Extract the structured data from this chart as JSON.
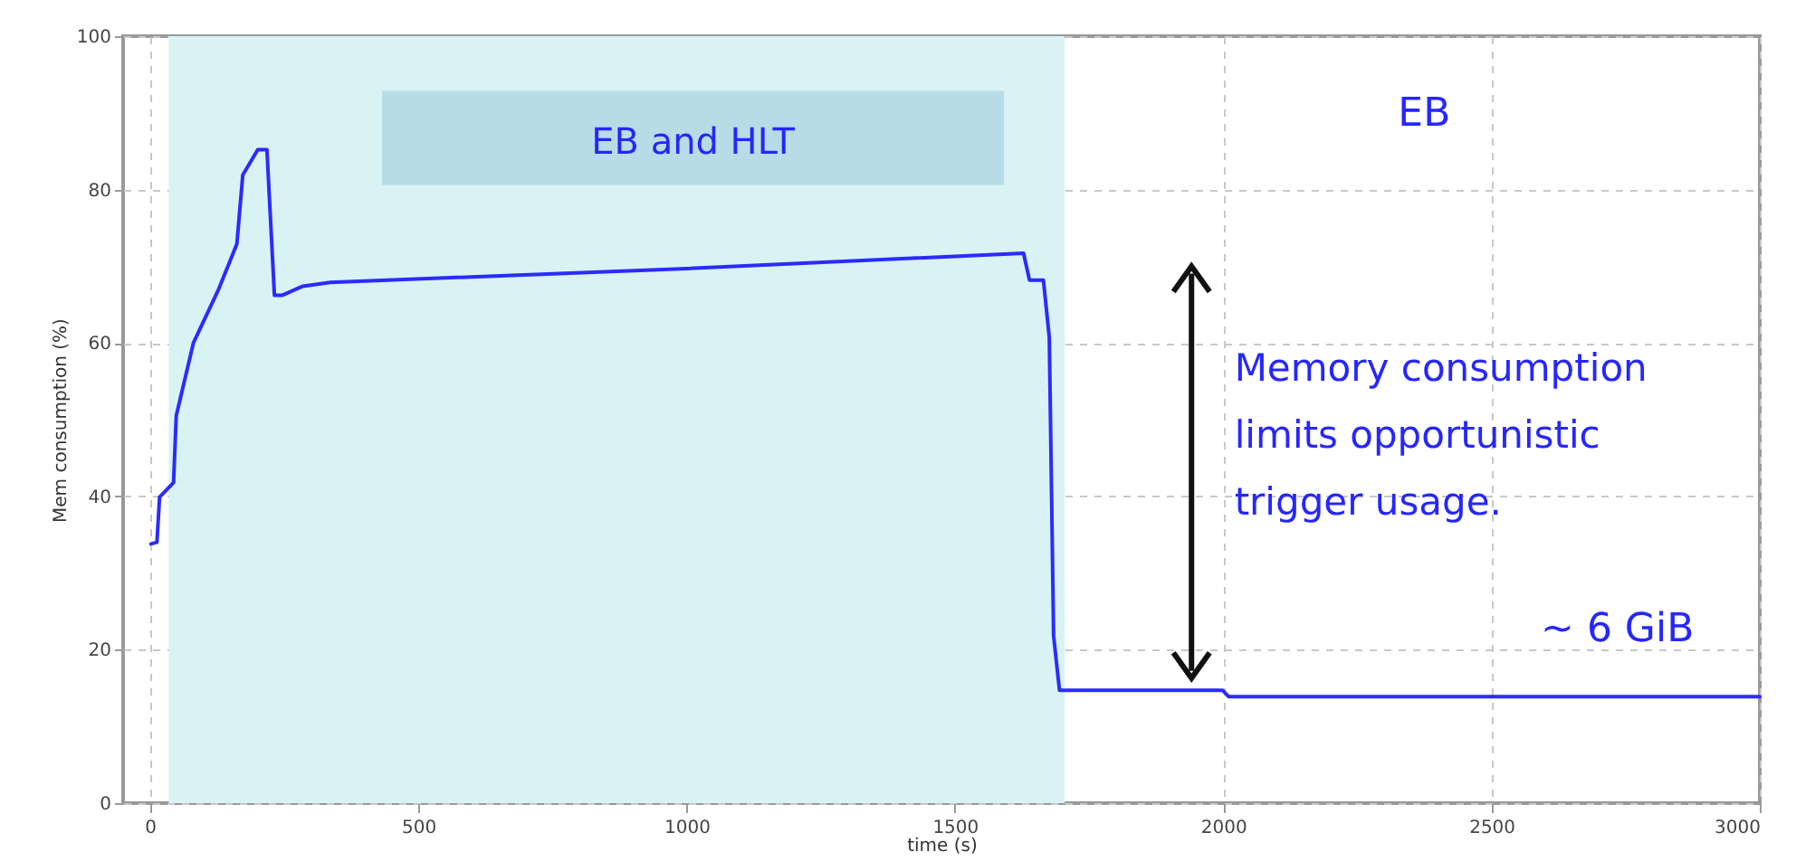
{
  "chart_data": {
    "type": "line",
    "xlabel": "time (s)",
    "ylabel": "Mem consumption (%)",
    "x": [
      2,
      13,
      18,
      44,
      49,
      81,
      128,
      162,
      173,
      201,
      218,
      232,
      246,
      285,
      336,
      1000,
      1628,
      1639,
      1665,
      1676,
      1684,
      1695,
      1999,
      2010,
      3000
    ],
    "series": [
      {
        "color": "#2b2bff",
        "values": [
          33.8,
          34,
          39.9,
          41.8,
          50.5,
          60,
          67,
          72.9,
          81.9,
          85.2,
          85.2,
          66.2,
          66.2,
          67.4,
          67.9,
          69.7,
          71.7,
          68.2,
          68.2,
          60.7,
          21.8,
          14.7,
          14.7,
          13.9,
          13.9
        ]
      }
    ],
    "xlim": [
      -50,
      3000
    ],
    "ylim": [
      0,
      100
    ],
    "xticks": [
      0,
      500,
      1000,
      1500,
      2000,
      2500,
      3000
    ],
    "yticks": [
      0,
      20,
      40,
      60,
      80,
      100
    ],
    "grid": true,
    "marker": "none",
    "line_style": "solid",
    "bands": [
      {
        "axis": "x",
        "from": 35,
        "to": 1705,
        "label": "EB and HLT",
        "color": "#d9f3f5"
      }
    ],
    "annotations": [
      "EB",
      "Memory consumption limits opportunistic trigger usage.",
      "~ 6 GiB"
    ]
  }
}
